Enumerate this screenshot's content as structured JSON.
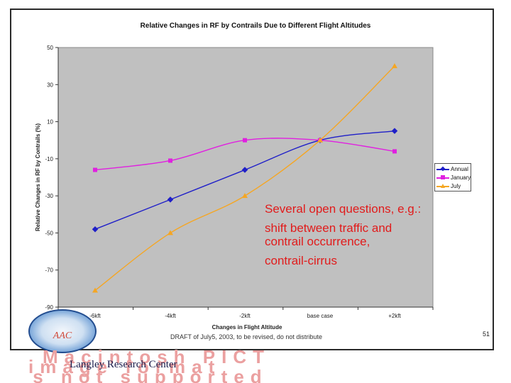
{
  "slide": {
    "footer_note": "DRAFT of July5, 2003, to be revised, do not distribute",
    "slide_number": "51",
    "logo_text": "AAC",
    "org_name": "Langley Research Center",
    "watermark_lines": [
      "Macintosh PICT",
      "image format",
      "is not supported"
    ]
  },
  "annotation": {
    "line1": "Several open questions, e.g.:",
    "line2": "shift between traffic and contrail occurrence,",
    "line3": "contrail-cirrus"
  },
  "colors": {
    "plot_background": "#c0c0c0",
    "annual": "#1f1fc8",
    "january": "#e020e0",
    "july": "#f5a623",
    "annotation": "#e11b1b"
  },
  "chart_data": {
    "type": "line",
    "title": "Relative Changes in RF by Contrails Due to Different Flight Altitudes",
    "xlabel": "Changes in Flight Altitude",
    "ylabel": "Relative Changes in RF by Contrails (%)",
    "categories": [
      "-6kft",
      "-4kft",
      "-2kft",
      "base case",
      "+2kft"
    ],
    "ylim": [
      -90,
      50
    ],
    "yticks": [
      50,
      30,
      10,
      -10,
      -30,
      -50,
      -70,
      -90
    ],
    "ytick_labels": [
      "50",
      "30",
      "10",
      "-10",
      "-30",
      "-50",
      "-70",
      "-90"
    ],
    "grid": false,
    "legend_position": "right",
    "series": [
      {
        "name": "Annual",
        "color": "#1f1fc8",
        "marker": "diamond",
        "values": [
          -48,
          -32,
          -16,
          0,
          5
        ]
      },
      {
        "name": "January",
        "color": "#e020e0",
        "marker": "square",
        "values": [
          -16,
          -11,
          0,
          0,
          -6
        ]
      },
      {
        "name": "July",
        "color": "#f5a623",
        "marker": "triangle",
        "values": [
          -81,
          -50,
          -30,
          0,
          40
        ]
      }
    ]
  }
}
